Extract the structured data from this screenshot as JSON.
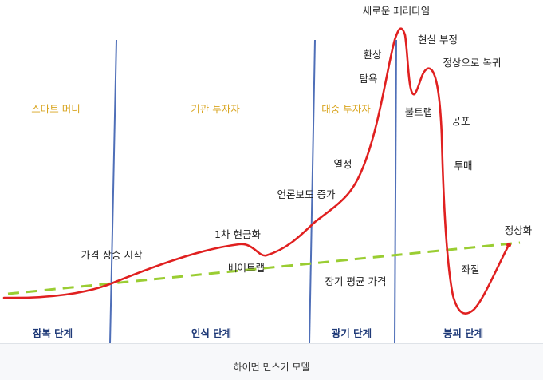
{
  "caption": "하이먼 민스키 모델",
  "colors": {
    "curve": "#e02020",
    "trend": "#9acd32",
    "divider": "#4f6fb8",
    "investor": "#d9a520",
    "phase": "#1f3a78",
    "text": "#222222"
  },
  "investors": [
    "스마트 머니",
    "기관 투자자",
    "대중 투자자"
  ],
  "phases": [
    "잠복 단계",
    "인식 단계",
    "광기 단계",
    "붕괴 단계"
  ],
  "labels": {
    "price_rise_start": "가격 상승 시작",
    "first_sell_off": "1차 현금화",
    "bear_trap": "베어트랩",
    "media_attention": "언론보도 증가",
    "enthusiasm": "열정",
    "greed": "탐욕",
    "delusion": "환상",
    "new_paradigm": "새로운 패러다임",
    "denial": "현실 부정",
    "bull_trap": "불트랩",
    "return_to_normal": "정상으로 복귀",
    "fear": "공포",
    "capitulation": "투매",
    "despair": "좌절",
    "normalization": "정상화",
    "long_term_mean": "장기 평균 가격"
  }
}
